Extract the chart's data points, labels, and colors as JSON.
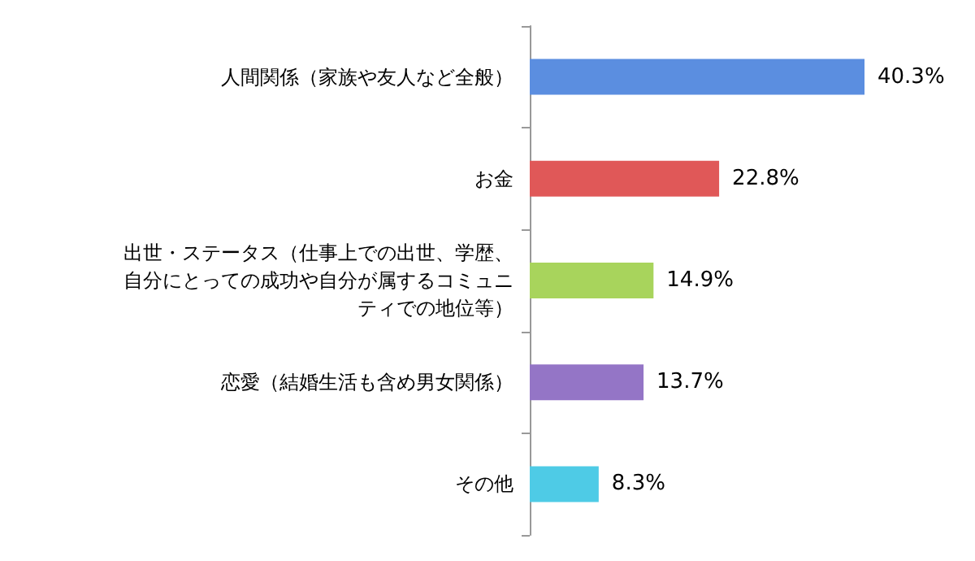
{
  "chart_data": {
    "type": "bar",
    "orientation": "horizontal",
    "categories": [
      "人間関係（家族や友人など全般）",
      "お金",
      "出世・ステータス（仕事上での出世、学歴、自分にとっての成功や自分が属するコミュニティでの地位等）",
      "恋愛（結婚生活も含め男女関係）",
      "その他"
    ],
    "values": [
      40.3,
      22.8,
      14.9,
      13.7,
      8.3
    ],
    "colors": [
      "#5b8ee0",
      "#e05858",
      "#a8d45c",
      "#9475c6",
      "#4ecbe6"
    ],
    "value_labels": [
      "40.3%",
      "22.8%",
      "14.9%",
      "13.7%",
      "8.3%"
    ]
  }
}
